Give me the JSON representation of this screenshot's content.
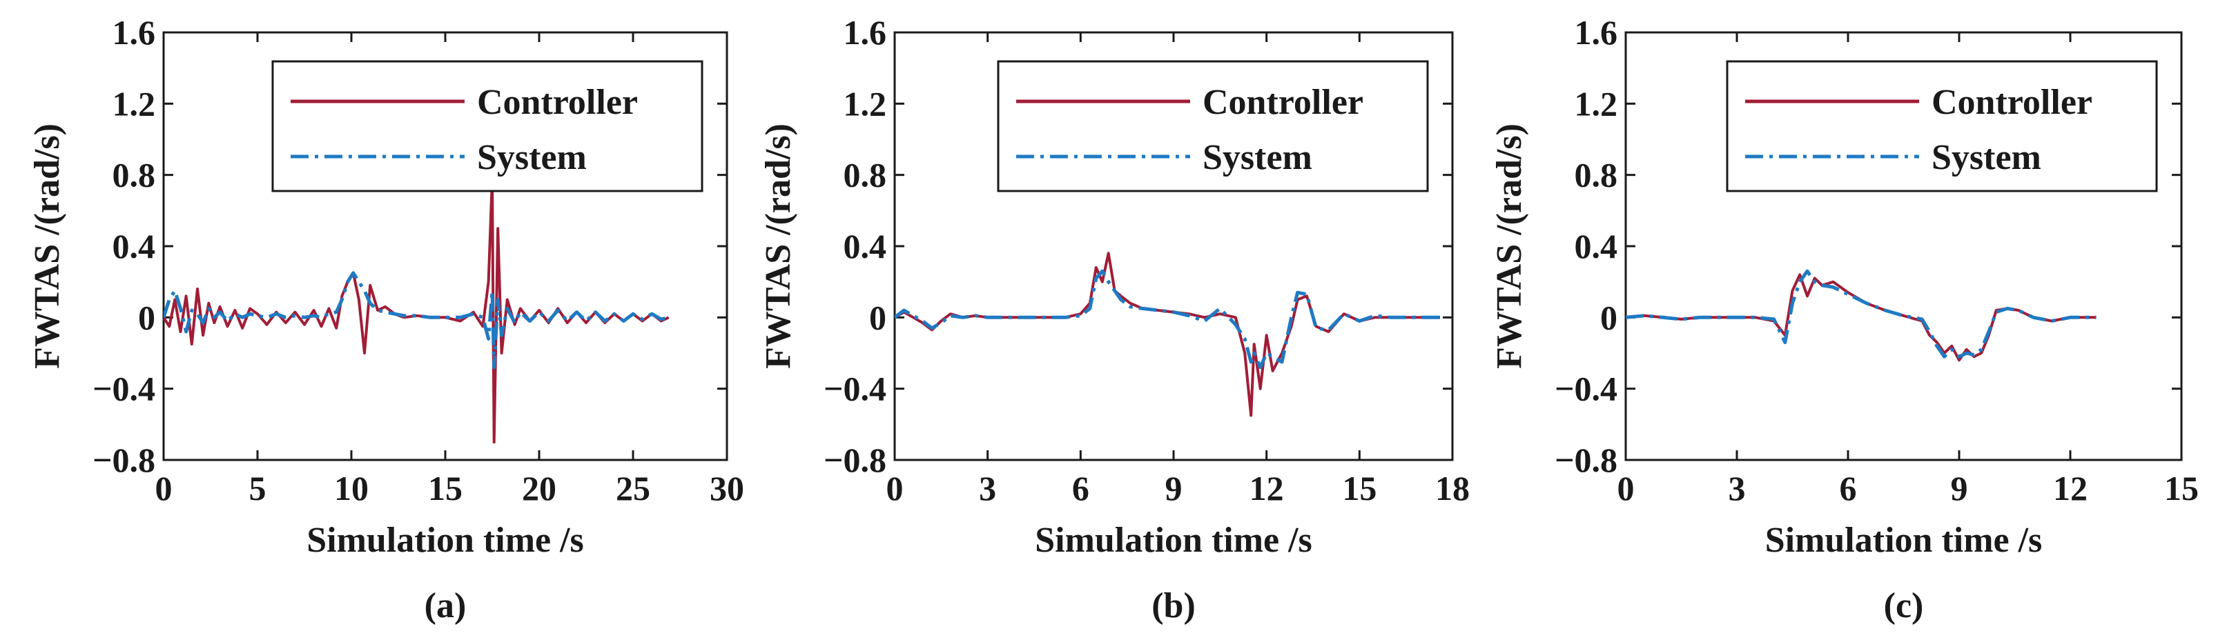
{
  "chart_data": [
    {
      "type": "line",
      "panel_label": "(a)",
      "xlabel": "Simulation time /s",
      "ylabel": "FWTAS /(rad/s)",
      "xlim": [
        0,
        30
      ],
      "ylim": [
        -0.8,
        1.6
      ],
      "xticks": [
        0,
        5,
        10,
        15,
        20,
        25,
        30
      ],
      "yticks": [
        -0.8,
        -0.4,
        0,
        0.4,
        0.8,
        1.2,
        1.6
      ],
      "xtick_labels": [
        "0",
        "5",
        "10",
        "15",
        "20",
        "25",
        "30"
      ],
      "ytick_labels": [
        "−0.8",
        "−0.4",
        "0",
        "0.4",
        "0.8",
        "1.2",
        "1.6"
      ],
      "legend_position": "top-right",
      "series": [
        {
          "name": "Controller",
          "color": "#a11d36",
          "style": "solid",
          "x": [
            0,
            0.3,
            0.6,
            0.9,
            1.2,
            1.5,
            1.8,
            2.1,
            2.4,
            2.7,
            3.0,
            3.4,
            3.8,
            4.2,
            4.6,
            5.0,
            5.5,
            6.0,
            6.5,
            7.0,
            7.5,
            8.0,
            8.4,
            8.8,
            9.2,
            9.5,
            9.8,
            10.1,
            10.4,
            10.7,
            11.0,
            11.4,
            11.8,
            12.3,
            12.8,
            13.5,
            14.2,
            15.0,
            15.8,
            16.5,
            17.0,
            17.3,
            17.5,
            17.6,
            17.8,
            18.0,
            18.3,
            18.7,
            19.0,
            19.5,
            20.0,
            20.5,
            21.0,
            21.5,
            22.0,
            22.5,
            23.0,
            23.5,
            24.0,
            24.5,
            25.0,
            25.5,
            26.0,
            26.5,
            26.9
          ],
          "y": [
            0.0,
            -0.05,
            0.1,
            -0.08,
            0.12,
            -0.15,
            0.16,
            -0.1,
            0.08,
            -0.03,
            0.06,
            -0.05,
            0.04,
            -0.06,
            0.05,
            0.02,
            -0.04,
            0.03,
            -0.03,
            0.03,
            -0.04,
            0.04,
            -0.05,
            0.05,
            -0.06,
            0.12,
            0.2,
            0.25,
            0.1,
            -0.2,
            0.18,
            0.04,
            0.06,
            0.02,
            0.0,
            0.01,
            0.0,
            0.0,
            -0.02,
            0.03,
            -0.05,
            0.2,
            0.78,
            -0.7,
            0.5,
            -0.2,
            0.1,
            -0.04,
            0.05,
            -0.02,
            0.04,
            -0.03,
            0.05,
            -0.03,
            0.03,
            -0.03,
            0.03,
            -0.03,
            0.02,
            -0.02,
            0.02,
            -0.02,
            0.02,
            -0.02,
            0.0
          ]
        },
        {
          "name": "System",
          "color": "#1f7ac3",
          "style": "dashdot",
          "x": [
            0,
            0.3,
            0.6,
            0.9,
            1.2,
            1.5,
            1.8,
            2.1,
            2.4,
            2.7,
            3.0,
            3.4,
            3.8,
            4.2,
            4.6,
            5.0,
            5.5,
            6.0,
            6.5,
            7.0,
            7.5,
            8.0,
            8.4,
            8.8,
            9.2,
            9.5,
            9.8,
            10.1,
            10.4,
            10.7,
            11.0,
            11.4,
            11.8,
            12.3,
            12.8,
            13.5,
            14.2,
            15.0,
            15.8,
            16.5,
            17.0,
            17.3,
            17.5,
            17.6,
            17.8,
            18.0,
            18.3,
            18.7,
            19.0,
            19.5,
            20.0,
            20.5,
            21.0,
            21.5,
            22.0,
            22.5,
            23.0,
            23.5,
            24.0,
            24.5,
            25.0,
            25.5,
            26.0,
            26.5,
            26.9
          ],
          "y": [
            0.0,
            0.1,
            0.15,
            0.05,
            -0.08,
            0.04,
            0.02,
            -0.03,
            0.05,
            0.0,
            0.03,
            -0.02,
            0.02,
            0.0,
            0.02,
            0.01,
            0.0,
            0.02,
            0.0,
            0.01,
            0.0,
            0.01,
            0.0,
            0.02,
            0.03,
            0.1,
            0.2,
            0.25,
            0.2,
            0.15,
            0.08,
            0.04,
            0.03,
            0.02,
            0.01,
            0.01,
            0.0,
            0.0,
            0.0,
            0.02,
            0.0,
            -0.12,
            0.15,
            -0.28,
            0.1,
            -0.1,
            0.05,
            -0.03,
            0.03,
            -0.02,
            0.03,
            -0.02,
            0.04,
            -0.02,
            0.03,
            -0.02,
            0.03,
            -0.02,
            0.02,
            -0.02,
            0.02,
            -0.01,
            0.02,
            -0.01,
            0.0
          ]
        }
      ]
    },
    {
      "type": "line",
      "panel_label": "(b)",
      "xlabel": "Simulation time /s",
      "ylabel": "FWTAS /(rad/s)",
      "xlim": [
        0,
        18
      ],
      "ylim": [
        -0.8,
        1.6
      ],
      "xticks": [
        0,
        3,
        6,
        9,
        12,
        15,
        18
      ],
      "yticks": [
        -0.8,
        -0.4,
        0,
        0.4,
        0.8,
        1.2,
        1.6
      ],
      "xtick_labels": [
        "0",
        "3",
        "6",
        "9",
        "12",
        "15",
        "18"
      ],
      "ytick_labels": [
        "−0.8",
        "−0.4",
        "0",
        "0.4",
        "0.8",
        "1.2",
        "1.6"
      ],
      "legend_position": "top-right",
      "series": [
        {
          "name": "Controller",
          "color": "#a11d36",
          "style": "solid",
          "x": [
            0,
            0.3,
            0.6,
            0.9,
            1.2,
            1.5,
            1.8,
            2.2,
            2.6,
            3.0,
            3.5,
            4.0,
            4.5,
            5.0,
            5.5,
            6.0,
            6.3,
            6.5,
            6.7,
            6.9,
            7.1,
            7.3,
            7.6,
            8.0,
            8.5,
            9.0,
            9.5,
            10.0,
            10.5,
            11.0,
            11.3,
            11.5,
            11.6,
            11.8,
            12.0,
            12.2,
            12.5,
            12.8,
            13.0,
            13.3,
            13.6,
            14.0,
            14.5,
            15.0,
            15.5,
            16.0,
            16.5,
            17.0,
            17.6
          ],
          "y": [
            0.0,
            0.03,
            0.0,
            -0.03,
            -0.07,
            -0.02,
            0.02,
            0.0,
            0.01,
            0.0,
            0.0,
            0.0,
            0.0,
            0.0,
            0.0,
            0.02,
            0.08,
            0.28,
            0.2,
            0.36,
            0.15,
            0.12,
            0.08,
            0.05,
            0.04,
            0.03,
            0.02,
            0.0,
            0.02,
            0.0,
            -0.2,
            -0.55,
            -0.15,
            -0.4,
            -0.1,
            -0.3,
            -0.2,
            -0.05,
            0.1,
            0.12,
            -0.05,
            -0.08,
            0.02,
            -0.02,
            0.0,
            0.0,
            0.0,
            0.0,
            0.0
          ]
        },
        {
          "name": "System",
          "color": "#1f7ac3",
          "style": "dashdot",
          "x": [
            0,
            0.3,
            0.6,
            0.9,
            1.2,
            1.5,
            1.8,
            2.2,
            2.6,
            3.0,
            3.5,
            4.0,
            4.5,
            5.0,
            5.5,
            6.0,
            6.3,
            6.5,
            6.7,
            6.9,
            7.1,
            7.3,
            7.6,
            8.0,
            8.5,
            9.0,
            9.5,
            10.0,
            10.5,
            11.0,
            11.3,
            11.5,
            11.6,
            11.8,
            12.0,
            12.2,
            12.5,
            12.8,
            13.0,
            13.3,
            13.6,
            14.0,
            14.5,
            15.0,
            15.5,
            16.0,
            16.5,
            17.0,
            17.6
          ],
          "y": [
            0.0,
            0.04,
            0.01,
            -0.02,
            -0.06,
            -0.03,
            0.01,
            0.0,
            0.01,
            0.0,
            0.0,
            0.0,
            0.0,
            0.0,
            0.0,
            0.01,
            0.05,
            0.22,
            0.26,
            0.2,
            0.15,
            0.1,
            0.06,
            0.05,
            0.04,
            0.03,
            0.01,
            -0.02,
            0.05,
            -0.04,
            -0.12,
            -0.25,
            -0.2,
            -0.28,
            -0.2,
            -0.22,
            -0.25,
            0.0,
            0.14,
            0.13,
            -0.06,
            -0.07,
            0.02,
            -0.02,
            0.01,
            0.0,
            0.0,
            0.0,
            0.0
          ]
        }
      ]
    },
    {
      "type": "line",
      "panel_label": "(c)",
      "xlabel": "Simulation time /s",
      "ylabel": "FWTAS /(rad/s)",
      "xlim": [
        0,
        15
      ],
      "ylim": [
        -0.8,
        1.6
      ],
      "xticks": [
        0,
        3,
        6,
        9,
        12,
        15
      ],
      "yticks": [
        -0.8,
        -0.4,
        0,
        0.4,
        0.8,
        1.2,
        1.6
      ],
      "xtick_labels": [
        "0",
        "3",
        "6",
        "9",
        "12",
        "15"
      ],
      "ytick_labels": [
        "−0.8",
        "−0.4",
        "0",
        "0.4",
        "0.8",
        "1.2",
        "1.6"
      ],
      "legend_position": "top-right",
      "series": [
        {
          "name": "Controller",
          "color": "#a11d36",
          "style": "solid",
          "x": [
            0,
            0.5,
            1.0,
            1.5,
            2.0,
            2.5,
            3.0,
            3.5,
            4.0,
            4.3,
            4.5,
            4.7,
            4.9,
            5.1,
            5.3,
            5.6,
            6.0,
            6.5,
            7.0,
            7.5,
            8.0,
            8.2,
            8.4,
            8.6,
            8.8,
            9.0,
            9.2,
            9.4,
            9.6,
            9.8,
            10.0,
            10.3,
            10.6,
            11.0,
            11.5,
            12.0,
            12.7
          ],
          "y": [
            0.0,
            0.01,
            0.0,
            -0.01,
            0.0,
            0.0,
            0.0,
            0.0,
            -0.02,
            -0.1,
            0.15,
            0.24,
            0.12,
            0.22,
            0.18,
            0.2,
            0.14,
            0.08,
            0.04,
            0.01,
            -0.02,
            -0.1,
            -0.14,
            -0.2,
            -0.16,
            -0.24,
            -0.18,
            -0.22,
            -0.2,
            -0.1,
            0.04,
            0.05,
            0.04,
            0.0,
            -0.02,
            0.0,
            0.0
          ]
        },
        {
          "name": "System",
          "color": "#1f7ac3",
          "style": "dashdot",
          "x": [
            0,
            0.5,
            1.0,
            1.5,
            2.0,
            2.5,
            3.0,
            3.5,
            4.0,
            4.3,
            4.5,
            4.7,
            4.9,
            5.1,
            5.3,
            5.6,
            6.0,
            6.5,
            7.0,
            7.5,
            8.0,
            8.2,
            8.4,
            8.6,
            8.8,
            9.0,
            9.2,
            9.4,
            9.6,
            9.8,
            10.0,
            10.3,
            10.6,
            11.0,
            11.5,
            12.0,
            12.7
          ],
          "y": [
            0.0,
            0.01,
            0.0,
            -0.01,
            0.0,
            0.0,
            0.0,
            0.0,
            -0.01,
            -0.14,
            0.08,
            0.2,
            0.26,
            0.2,
            0.18,
            0.17,
            0.13,
            0.08,
            0.04,
            0.01,
            -0.01,
            -0.08,
            -0.16,
            -0.22,
            -0.18,
            -0.22,
            -0.2,
            -0.21,
            -0.18,
            -0.08,
            0.03,
            0.05,
            0.04,
            0.0,
            -0.02,
            0.0,
            0.0
          ]
        }
      ]
    }
  ]
}
